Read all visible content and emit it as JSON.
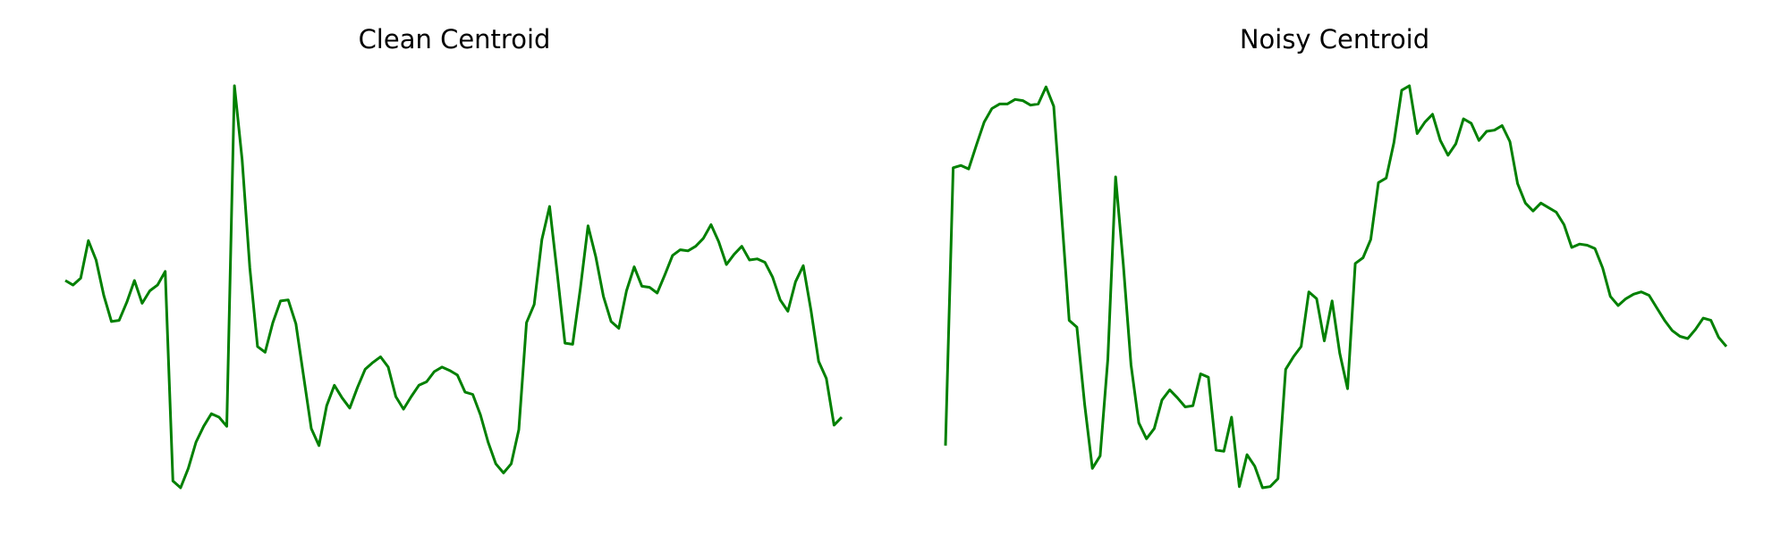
{
  "chart_data": [
    {
      "type": "line",
      "title": "Clean Centroid",
      "color": "#008000",
      "values": [
        184,
        180,
        186,
        219,
        202,
        171,
        148,
        149,
        165,
        184,
        164,
        175,
        180,
        192,
        8,
        2,
        19,
        42,
        56,
        67,
        64,
        56,
        355,
        290,
        195,
        126,
        121,
        147,
        166,
        167,
        146,
        100,
        54,
        39,
        74,
        92,
        81,
        72,
        90,
        106,
        112,
        117,
        108,
        82,
        71,
        82,
        92,
        95,
        104,
        108,
        105,
        101,
        86,
        84,
        66,
        42,
        23,
        15,
        23,
        53,
        147,
        163,
        220,
        249,
        190,
        129,
        128,
        177,
        232,
        205,
        170,
        148,
        142,
        175,
        196,
        179,
        178,
        173,
        189,
        206,
        211,
        210,
        214,
        221,
        233,
        218,
        198,
        207,
        214,
        202,
        203,
        200,
        187,
        167,
        157,
        183,
        197,
        158,
        113,
        98,
        57,
        64
      ]
    },
    {
      "type": "line",
      "title": "Noisy Centroid",
      "color": "#008000",
      "values": [
        38,
        282,
        284,
        281,
        302,
        322,
        334,
        338,
        338,
        342,
        341,
        337,
        338,
        353,
        336,
        242,
        148,
        142,
        74,
        18,
        29,
        114,
        274,
        197,
        109,
        58,
        44,
        53,
        78,
        87,
        80,
        72,
        73,
        101,
        98,
        34,
        33,
        63,
        2,
        30,
        20,
        1,
        2,
        9,
        105,
        116,
        125,
        173,
        167,
        130,
        165,
        119,
        88,
        198,
        203,
        219,
        269,
        273,
        304,
        350,
        354,
        312,
        322,
        329,
        306,
        293,
        303,
        325,
        321,
        306,
        314,
        315,
        319,
        305,
        268,
        251,
        244,
        251,
        247,
        243,
        232,
        212,
        215,
        214,
        211,
        194,
        169,
        161,
        167,
        171,
        173,
        170,
        159,
        148,
        139,
        134,
        132,
        140,
        150,
        148,
        133,
        125
      ]
    }
  ]
}
